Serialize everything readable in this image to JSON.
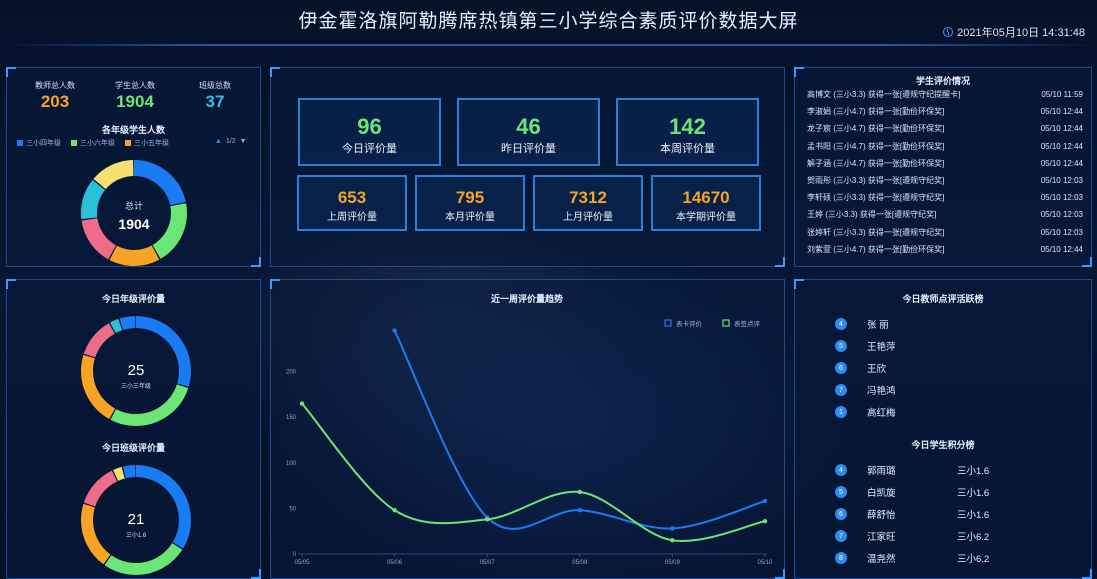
{
  "header": {
    "title": "伊金霍洛旗阿勒腾席热镇第三小学综合素质评价数据大屏",
    "datetime": "2021年05月10日 14:31:48",
    "icon": "clock-icon"
  },
  "summary": {
    "teachers_label": "教师总人数",
    "teachers_value": "203",
    "students_label": "学生总人数",
    "students_value": "1904",
    "classes_label": "班级总数",
    "classes_value": "37",
    "grade_title": "各年级学生人数",
    "legend": [
      {
        "label": "三小四年级",
        "color": "#1a7cf2"
      },
      {
        "label": "三小六年级",
        "color": "#6be675"
      },
      {
        "label": "三小五年级",
        "color": "#f7a325"
      }
    ],
    "pager": "1/2",
    "donut_center_label": "总计",
    "donut_center_value": "1904",
    "donut_segments": [
      {
        "value": 0.22,
        "color": "#1a7cf2"
      },
      {
        "value": 0.2,
        "color": "#6be675"
      },
      {
        "value": 0.16,
        "color": "#f7a325"
      },
      {
        "value": 0.15,
        "color": "#ef6b8a"
      },
      {
        "value": 0.13,
        "color": "#2bc0d8"
      },
      {
        "value": 0.14,
        "color": "#f5e071"
      }
    ]
  },
  "kpis_top": [
    {
      "value": "96",
      "label": "今日评价量"
    },
    {
      "value": "46",
      "label": "昨日评价量"
    },
    {
      "value": "142",
      "label": "本周评价量"
    }
  ],
  "kpis_bottom": [
    {
      "value": "653",
      "label": "上周评价量"
    },
    {
      "value": "795",
      "label": "本月评价量"
    },
    {
      "value": "7312",
      "label": "上月评价量"
    },
    {
      "value": "14670",
      "label": "本学期评价量"
    }
  ],
  "feed": {
    "title": "学生评价情况",
    "rows": [
      {
        "text": "高博文 (三小3.3) 获得一张[遵规守纪提醒卡]",
        "time": "05/10 11:59"
      },
      {
        "text": "李淑娟 (三小4.7) 获得一张[勤俭环保奖]",
        "time": "05/10 12:44"
      },
      {
        "text": "龙子宸 (三小4.7) 获得一张[勤俭环保奖]",
        "time": "05/10 12:44"
      },
      {
        "text": "孟书阳 (三小4.7) 获得一张[勤俭环保奖]",
        "time": "05/10 12:44"
      },
      {
        "text": "解子涵 (三小4.7) 获得一张[勤俭环保奖]",
        "time": "05/10 12:44"
      },
      {
        "text": "贺雨彤 (三小3.3) 获得一张[遵规守纪奖]",
        "time": "05/10 12:03"
      },
      {
        "text": "李轩硕 (三小3.3) 获得一张[遵规守纪奖]",
        "time": "05/10 12:03"
      },
      {
        "text": "王婷 (三小3.3) 获得一张[遵规守纪奖]",
        "time": "05/10 12:03"
      },
      {
        "text": "张婷轩 (三小3.3) 获得一张[遵规守纪奖]",
        "time": "05/10 12:03"
      },
      {
        "text": "刘紫萱 (三小4.7) 获得一张[勤俭环保奖]",
        "time": "05/10 12:44"
      }
    ]
  },
  "grade_today": {
    "title": "今日年级评价量",
    "center_value": "25",
    "center_label": "三小三年级",
    "segments": [
      {
        "value": 0.3,
        "color": "#1a7cf2"
      },
      {
        "value": 0.28,
        "color": "#6be675"
      },
      {
        "value": 0.22,
        "color": "#f7a325"
      },
      {
        "value": 0.12,
        "color": "#ef6b8a"
      },
      {
        "value": 0.03,
        "color": "#2bc0d8"
      },
      {
        "value": 0.05,
        "color": "#1a7cf2"
      }
    ]
  },
  "class_today": {
    "title": "今日班级评价量",
    "center_value": "21",
    "center_label": "三小1.6",
    "segments": [
      {
        "value": 0.34,
        "color": "#1a7cf2"
      },
      {
        "value": 0.26,
        "color": "#6be675"
      },
      {
        "value": 0.2,
        "color": "#f7a325"
      },
      {
        "value": 0.13,
        "color": "#ef6b8a"
      },
      {
        "value": 0.03,
        "color": "#f5e071"
      },
      {
        "value": 0.04,
        "color": "#1a7cf2"
      }
    ]
  },
  "chart_data": {
    "type": "line",
    "title": "近一周评价量趋势",
    "x": [
      "05/05",
      "05/06",
      "05/07",
      "05/08",
      "05/09",
      "05/10"
    ],
    "series": [
      {
        "name": "表卡评价",
        "color": "#1a7cf2",
        "values": [
          null,
          245,
          40,
          48,
          28,
          58
        ]
      },
      {
        "name": "表签点评",
        "color": "#6be675",
        "values": [
          165,
          48,
          38,
          68,
          15,
          36
        ]
      }
    ],
    "yticks": [
      0,
      50,
      100,
      150,
      200
    ],
    "ylim": [
      0,
      250
    ],
    "legend_position": "top-right",
    "grid": false
  },
  "teacher_rank": {
    "title": "今日教师点评活跃榜",
    "items": [
      {
        "rank": "4",
        "name": "张 丽"
      },
      {
        "rank": "5",
        "name": "王艳萍"
      },
      {
        "rank": "6",
        "name": "王欣"
      },
      {
        "rank": "7",
        "name": "冯艳鸿"
      },
      {
        "rank": "1",
        "name": "高红梅"
      }
    ]
  },
  "student_rank": {
    "title": "今日学生积分榜",
    "items": [
      {
        "rank": "4",
        "name": "郭雨璐",
        "class": "三小1.6"
      },
      {
        "rank": "5",
        "name": "白凯旋",
        "class": "三小1.6"
      },
      {
        "rank": "6",
        "name": "薛舒怡",
        "class": "三小1.6"
      },
      {
        "rank": "7",
        "name": "江家旺",
        "class": "三小6.2"
      },
      {
        "rank": "8",
        "name": "温尧然",
        "class": "三小6.2"
      }
    ]
  }
}
